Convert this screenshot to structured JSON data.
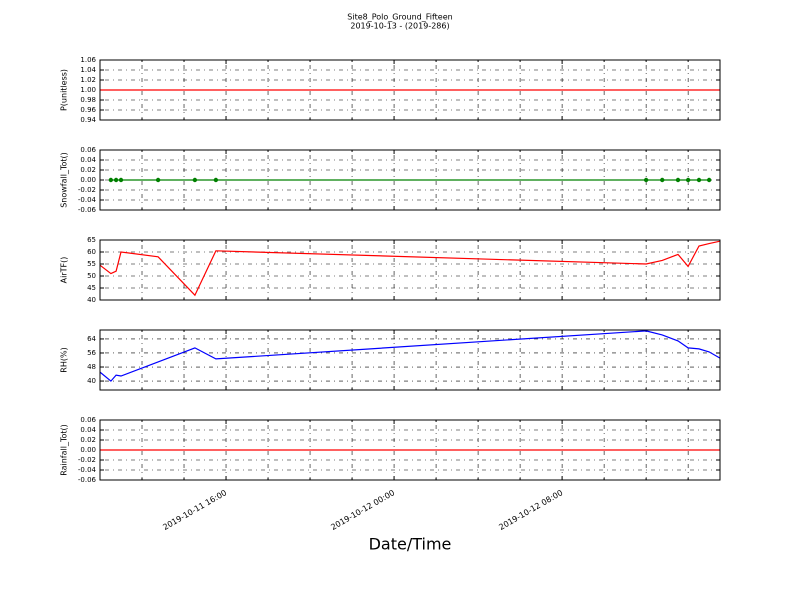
{
  "figure": {
    "title": "Site8_Polo_Ground_Fifteen",
    "subtitle": "2019-10-13 - (2019-286)",
    "xlabel": "Date/Time",
    "xlim": [
      "2019-10-11 10:00",
      "2019-10-12 15:31"
    ],
    "xticks": [
      "2019-10-11 16:00",
      "2019-10-12 00:00",
      "2019-10-12 08:00"
    ],
    "x_minor_ticks": [
      "2019-10-11 12:00",
      "2019-10-11 14:00",
      "2019-10-11 18:00",
      "2019-10-11 20:00",
      "2019-10-11 22:00",
      "2019-10-12 02:00",
      "2019-10-12 04:00",
      "2019-10-12 06:00",
      "2019-10-12 10:00",
      "2019-10-12 12:00",
      "2019-10-12 14:00"
    ],
    "grid": true
  },
  "chart_data": [
    {
      "type": "line",
      "ylabel": "P(unitless)",
      "ylim": [
        0.94,
        1.06
      ],
      "yticks": [
        0.94,
        0.96,
        0.98,
        {
          "value": 1,
          "label": "1.00"
        },
        1.02,
        1.04,
        1.06
      ],
      "x": [
        "2019-10-11 10:00",
        "2019-10-12 15:31"
      ],
      "series": [
        {
          "color": "#ff0000",
          "values": [
            1,
            1
          ]
        }
      ]
    },
    {
      "type": "line",
      "ylabel": "Snowfall_Tot()",
      "ylim": [
        -0.06,
        0.06
      ],
      "yticks": [
        -0.06,
        -0.04,
        -0.02,
        {
          "value": 0,
          "label": "0.00"
        },
        0.02,
        0.04,
        0.06
      ],
      "x": [
        "2019-10-11 10:31",
        "2019-10-11 10:46",
        "2019-10-11 11:00",
        "2019-10-11 12:46",
        "2019-10-11 14:31",
        "2019-10-11 15:31",
        "2019-10-12 12:00",
        "2019-10-12 12:46",
        "2019-10-12 13:31",
        "2019-10-12 14:00",
        "2019-10-12 14:31",
        "2019-10-12 15:00"
      ],
      "series": [
        {
          "color": "#008000",
          "marker": "o",
          "values": [
            0,
            0,
            0,
            0,
            0,
            0,
            0,
            0,
            0,
            0,
            0,
            0
          ]
        }
      ]
    },
    {
      "type": "line",
      "ylabel": "AirTF()",
      "ylim": [
        40,
        65
      ],
      "yticks": [
        40,
        45,
        50,
        55,
        60,
        65
      ],
      "x": [
        "2019-10-11 10:00",
        "2019-10-11 10:31",
        "2019-10-11 10:46",
        "2019-10-11 11:00",
        "2019-10-11 12:46",
        "2019-10-11 14:31",
        "2019-10-11 15:31",
        "2019-10-12 12:00",
        "2019-10-12 12:46",
        "2019-10-12 13:31",
        "2019-10-12 14:00",
        "2019-10-12 14:31",
        "2019-10-12 15:00",
        "2019-10-12 15:31"
      ],
      "series": [
        {
          "color": "#ff0000",
          "values": [
            54.5,
            51,
            52,
            60,
            58,
            42,
            60.5,
            55,
            56.5,
            59,
            54,
            62.5,
            63.5,
            64.5
          ]
        }
      ]
    },
    {
      "type": "line",
      "ylabel": "RH(%)",
      "ylim": [
        34.9,
        69.1
      ],
      "yticks": [
        40,
        48,
        56,
        64
      ],
      "x": [
        "2019-10-11 10:00",
        "2019-10-11 10:31",
        "2019-10-11 10:46",
        "2019-10-11 11:00",
        "2019-10-11 12:46",
        "2019-10-11 14:31",
        "2019-10-11 15:31",
        "2019-10-12 12:00",
        "2019-10-12 12:46",
        "2019-10-12 13:31",
        "2019-10-12 14:00",
        "2019-10-12 14:31",
        "2019-10-12 15:00",
        "2019-10-12 15:31"
      ],
      "series": [
        {
          "color": "#0000ff",
          "values": [
            45.1,
            40,
            43.4,
            42.9,
            50.9,
            58.9,
            52.6,
            68.6,
            66.3,
            62.9,
            58.9,
            58.3,
            56.6,
            53.1
          ]
        }
      ]
    },
    {
      "type": "line",
      "ylabel": "Rainfall_Tot()",
      "ylim": [
        -0.06,
        0.06
      ],
      "yticks": [
        -0.06,
        -0.04,
        -0.02,
        {
          "value": 0,
          "label": "0.00"
        },
        0.02,
        0.04,
        0.06
      ],
      "x": [
        "2019-10-11 10:00",
        "2019-10-12 15:31"
      ],
      "series": [
        {
          "color": "#ff0000",
          "values": [
            0,
            0
          ]
        }
      ]
    }
  ]
}
